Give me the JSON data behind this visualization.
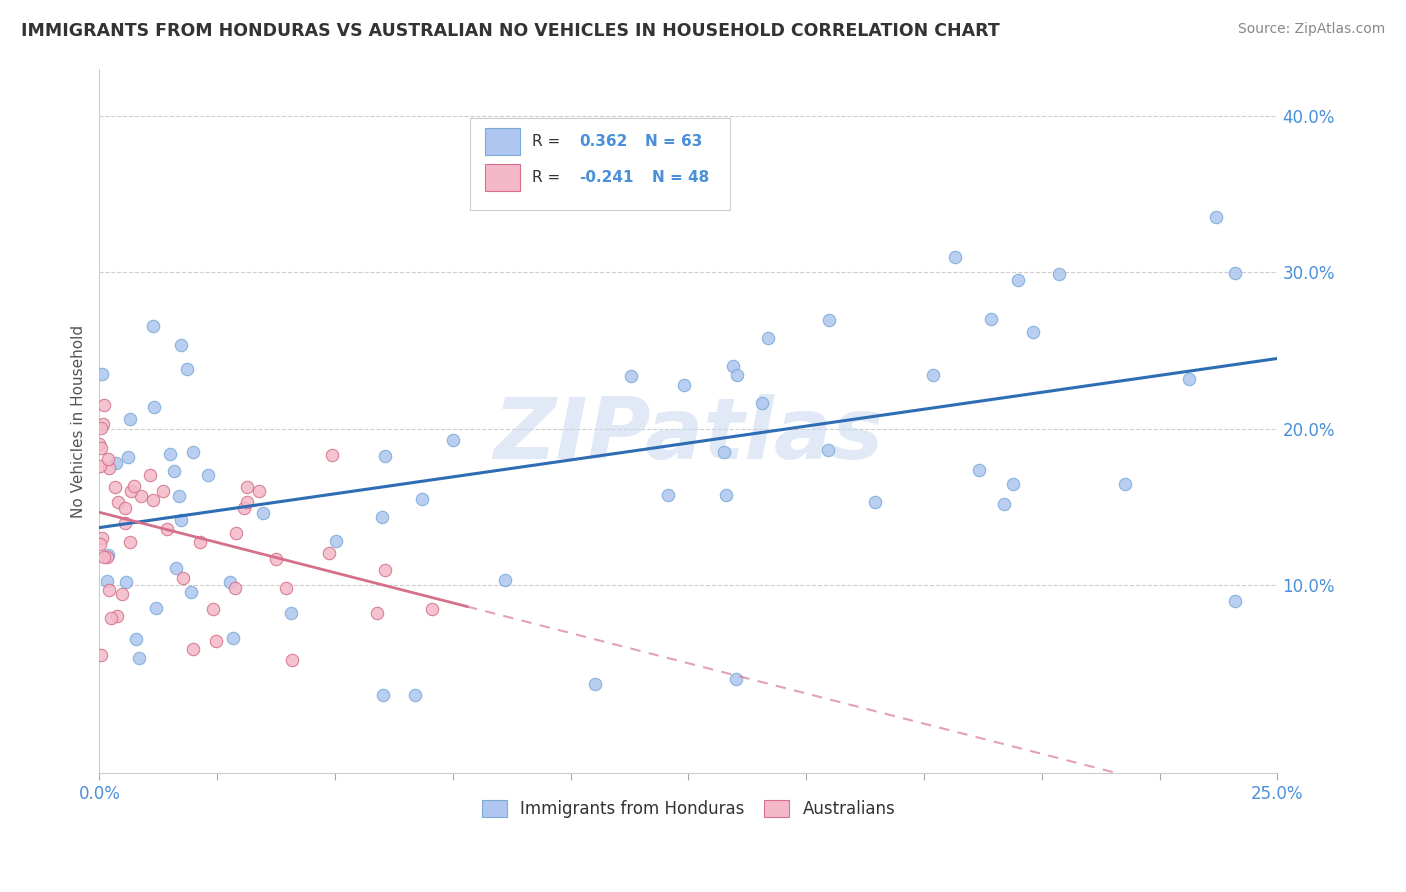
{
  "title": "IMMIGRANTS FROM HONDURAS VS AUSTRALIAN NO VEHICLES IN HOUSEHOLD CORRELATION CHART",
  "source": "Source: ZipAtlas.com",
  "ylabel": "No Vehicles in Household",
  "y_ticks": [
    0.1,
    0.2,
    0.3,
    0.4
  ],
  "y_tick_labels": [
    "10.0%",
    "20.0%",
    "30.0%",
    "40.0%"
  ],
  "xlim": [
    0.0,
    0.25
  ],
  "ylim": [
    -0.02,
    0.43
  ],
  "blue_color": "#aec6f0",
  "blue_edge": "#7baad4",
  "blue_line": "#2e6db4",
  "pink_color": "#f4b8c8",
  "pink_edge": "#d4708a",
  "pink_line": "#d4708a",
  "watermark": "ZIPatlas",
  "background_color": "#ffffff",
  "grid_color": "#c8c8c8",
  "tick_color": "#4a90d9",
  "title_color": "#333333",
  "source_color": "#888888",
  "label_color": "#555555"
}
